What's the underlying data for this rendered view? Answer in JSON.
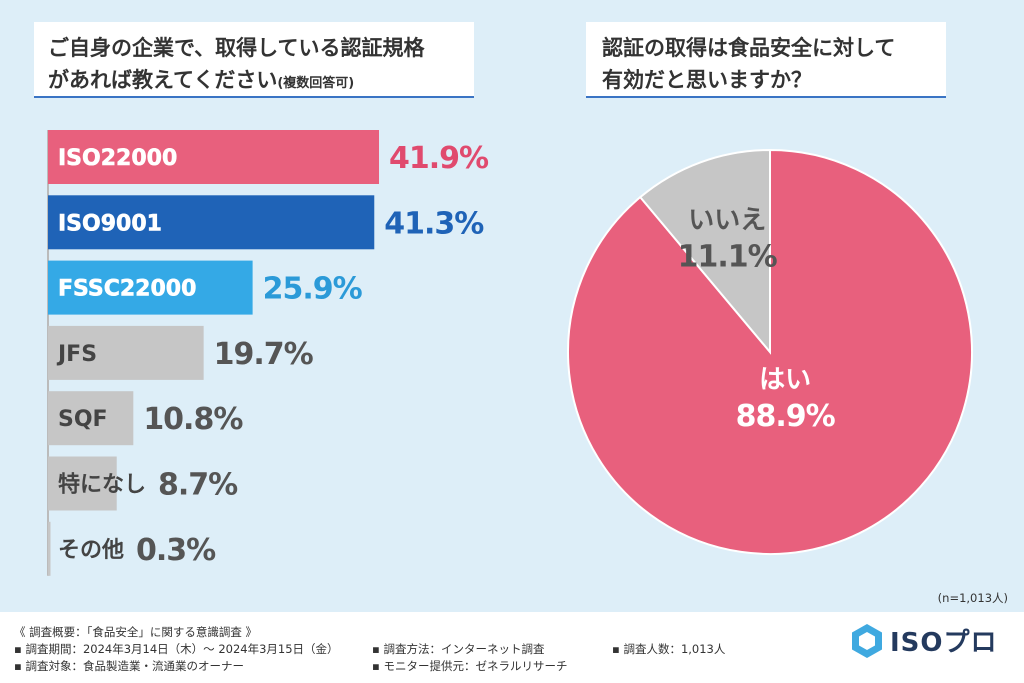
{
  "left_title": {
    "line1": "ご自身の企業で、取得している認証規格",
    "line2": "があれば教えてください",
    "note": "(複数回答可)"
  },
  "right_title": {
    "line1": "認証の取得は食品安全に対して",
    "line2": "有効だと思いますか？"
  },
  "chart_data": [
    {
      "type": "bar",
      "orientation": "horizontal",
      "categories": [
        "ISO22000",
        "ISO9001",
        "FSSC22000",
        "JFS",
        "SQF",
        "特になし",
        "その他"
      ],
      "values": [
        41.9,
        41.3,
        25.9,
        19.7,
        10.8,
        8.7,
        0.3
      ],
      "labels": [
        "41.9%",
        "41.3%",
        "25.9%",
        "19.7%",
        "10.8%",
        "8.7%",
        "0.3%"
      ],
      "colors": [
        "#e8607d",
        "#1f63b7",
        "#34a9e6",
        "#c6c6c6",
        "#c6c6c6",
        "#c6c6c6",
        "#c6c6c6"
      ],
      "label_colors": [
        "#e04a6e",
        "#1f63b7",
        "#2b9ad8",
        "#555555",
        "#555555",
        "#555555",
        "#555555"
      ],
      "xlim": [
        0,
        100
      ]
    },
    {
      "type": "pie",
      "categories": [
        "はい",
        "いいえ"
      ],
      "values": [
        88.9,
        11.1
      ],
      "labels": [
        "88.9%",
        "11.1%"
      ],
      "colors": [
        "#e8607d",
        "#c6c6c6"
      ],
      "label_colors": [
        "#ffffff",
        "#555555"
      ]
    }
  ],
  "n_note": "(n=1,013人)",
  "footer": {
    "summary": "《 調査概要：「食品安全」に関する意識調査 》",
    "period": "▪ 調査期間：2024年3月14日（木）〜 2024年3月15日（金）",
    "target": "▪ 調査対象：食品製造業・流通業のオーナー",
    "method": "▪ 調査方法：インターネット調査",
    "provider": "▪ モニター提供元：ゼネラルリサーチ",
    "count": "▪ 調査人数：1,013人"
  },
  "logo": {
    "text": "ISOプロ",
    "icon": "hexagon-logo-icon",
    "color": "#243a5e"
  }
}
